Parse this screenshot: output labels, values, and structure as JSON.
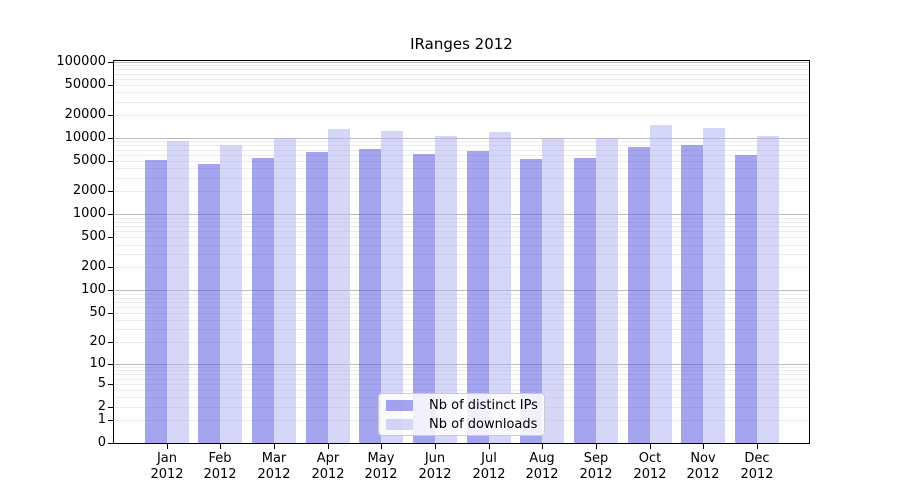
{
  "chart_data": {
    "type": "bar",
    "title": "IRanges 2012",
    "categories": [
      "Jan",
      "Feb",
      "Mar",
      "Apr",
      "May",
      "Jun",
      "Jul",
      "Aug",
      "Sep",
      "Oct",
      "Nov",
      "Dec"
    ],
    "year_label": "2012",
    "series": [
      {
        "name": "Nb of distinct IPs",
        "color_fill": "rgba(90,90,225,0.55)",
        "color_solid": "#a6a6ee",
        "values": [
          5100,
          4600,
          5400,
          6600,
          7100,
          6150,
          6800,
          5350,
          5500,
          7650,
          8000,
          6050
        ]
      },
      {
        "name": "Nb of downloads",
        "color_fill": "rgba(180,180,243,0.55)",
        "color_solid": "#d6d6f7",
        "values": [
          9100,
          8100,
          10100,
          13200,
          12300,
          10600,
          12050,
          9800,
          10000,
          14700,
          13500,
          10500
        ]
      }
    ],
    "yticks": [
      0,
      1,
      2,
      5,
      10,
      20,
      50,
      100,
      200,
      500,
      1000,
      2000,
      5000,
      10000,
      20000,
      50000,
      100000
    ],
    "ylim": [
      0,
      100000
    ],
    "scale": "log10(1+x)",
    "grid": "horizontal minor lines at 1-9 per decade, darker lines at powers of 10",
    "legend_position": "bottom-center",
    "xlabel": "",
    "ylabel": ""
  }
}
